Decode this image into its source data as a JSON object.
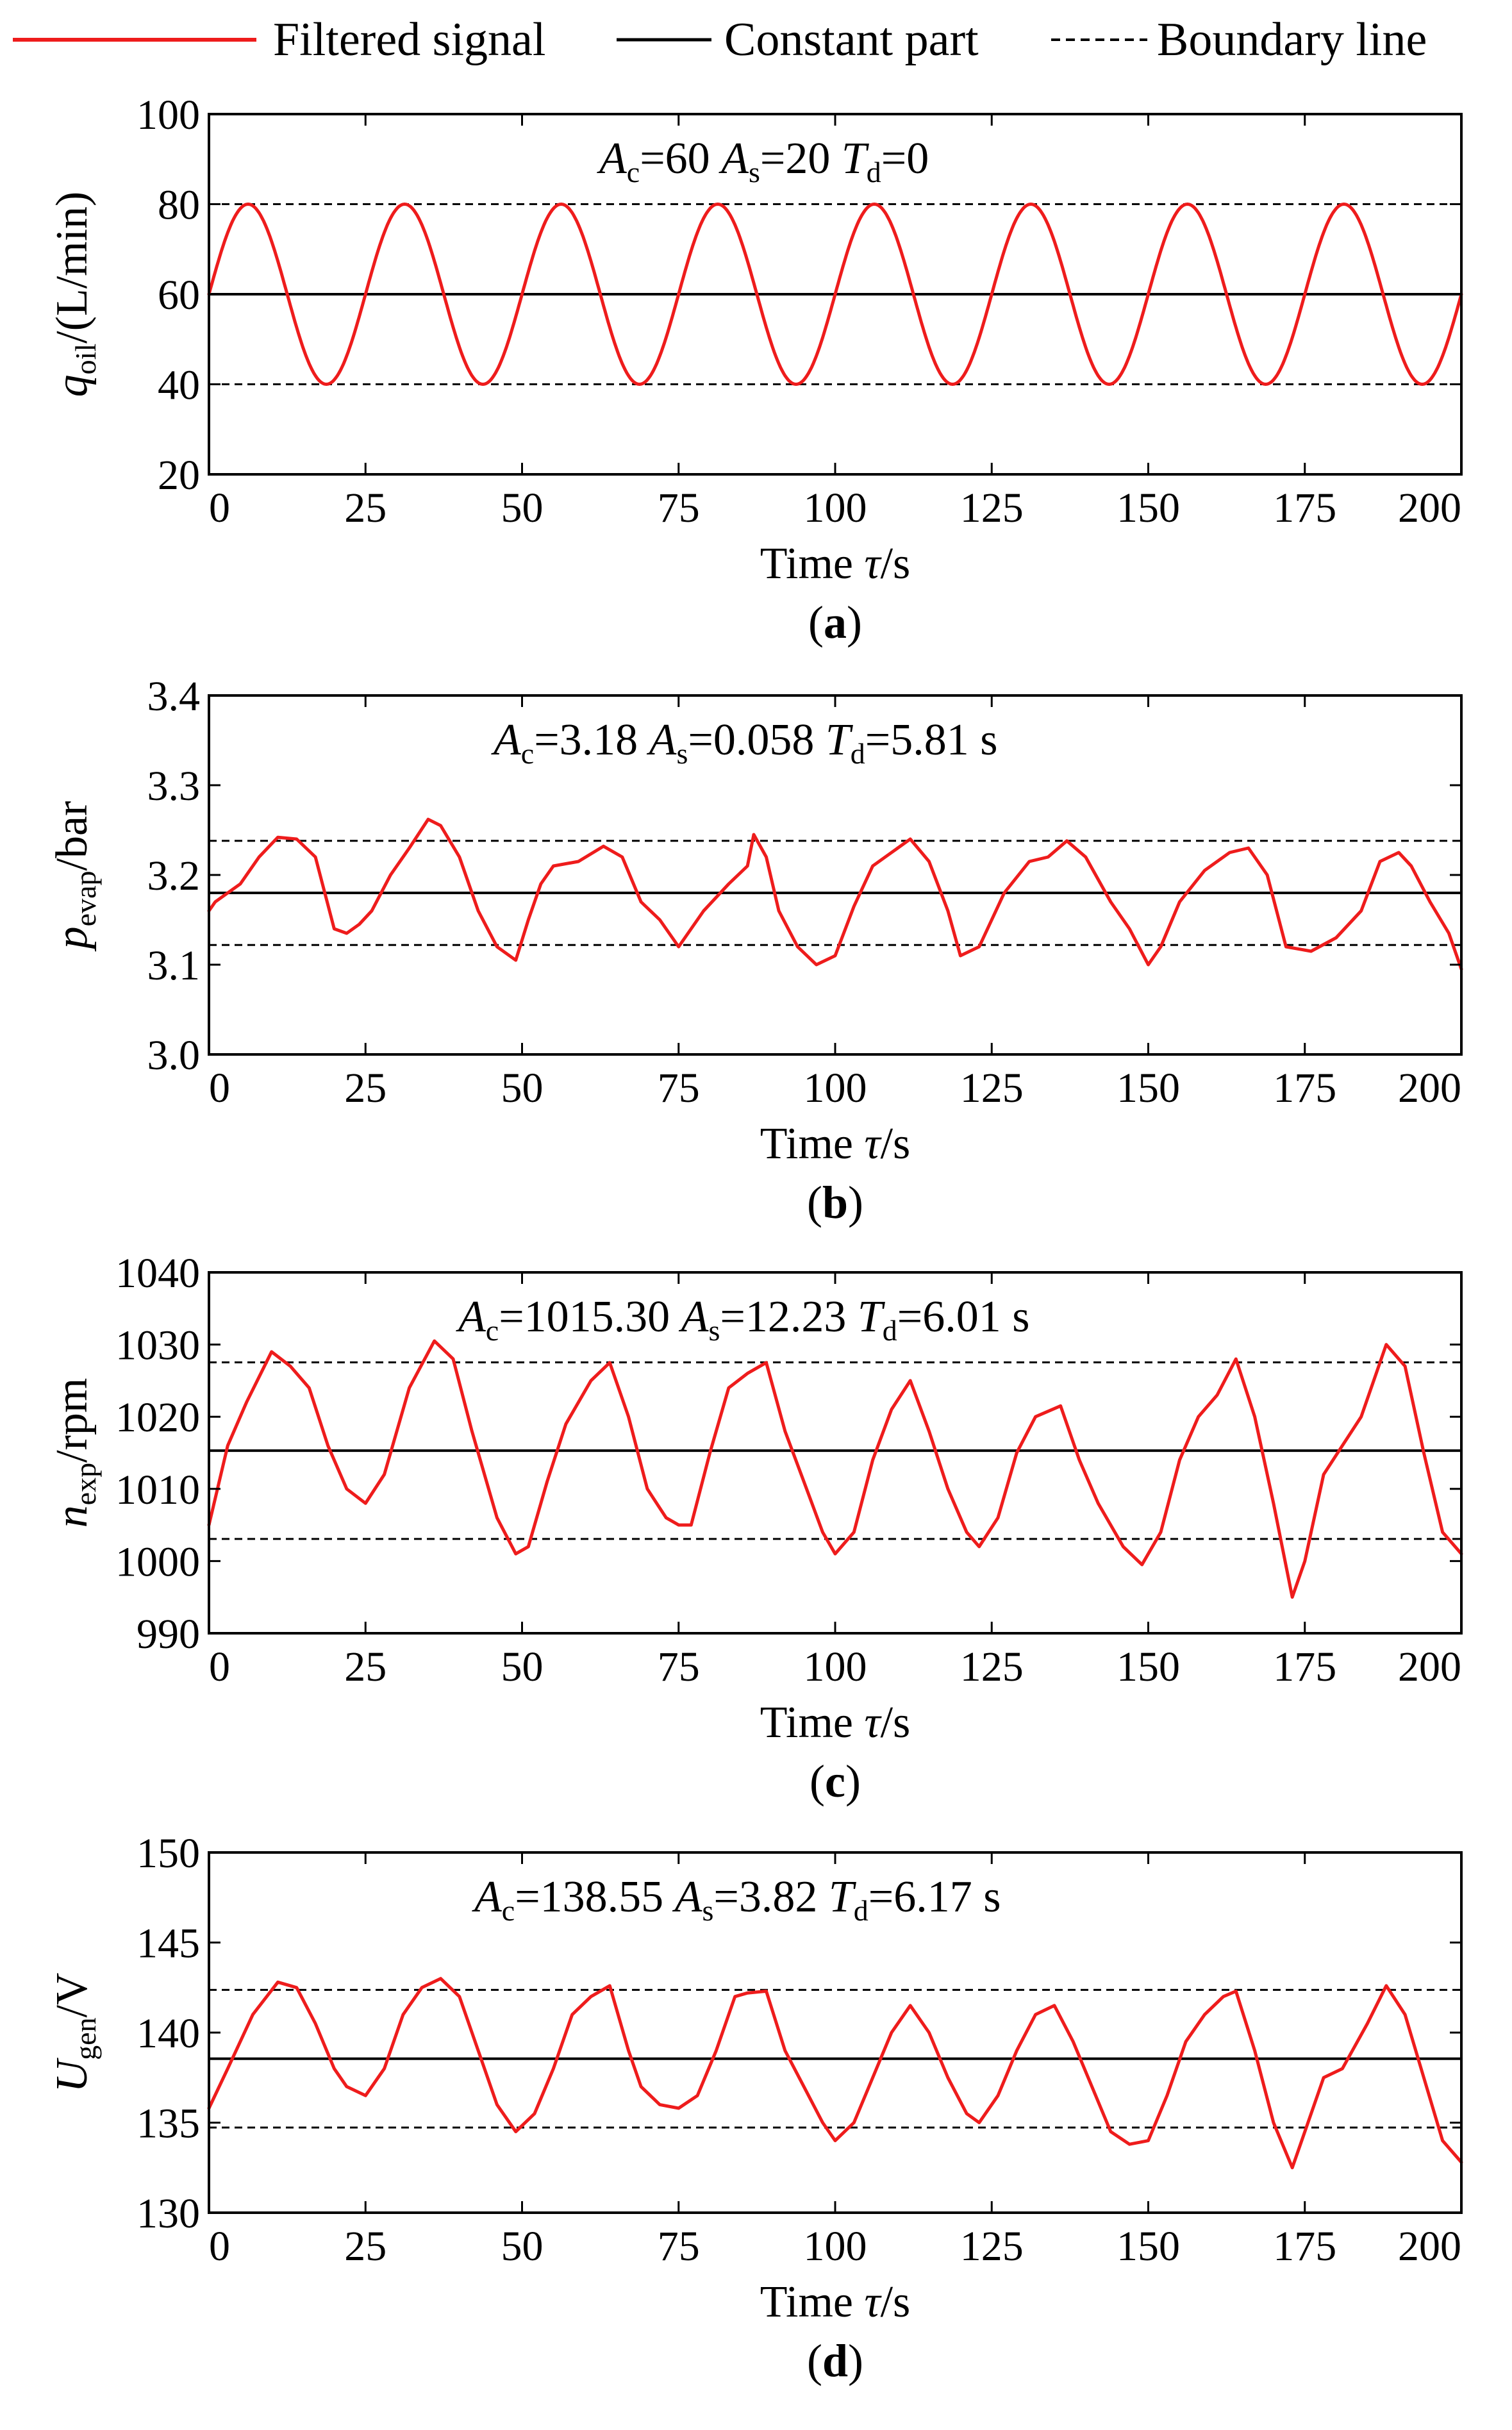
{
  "legend": {
    "filtered": "Filtered signal",
    "constant": "Constant part",
    "boundary": "Boundary line"
  },
  "colors": {
    "signal": "#ee1c1c",
    "axis": "#000000"
  },
  "chart_data": [
    {
      "type": "line",
      "panel": "a",
      "panel_label": "a",
      "xlabel": {
        "pre": "Time ",
        "var": "τ",
        "post": "/s"
      },
      "ylabel": {
        "var": "q",
        "sub": "oil",
        "unit": "/(L/min)"
      },
      "xlim": [
        0,
        200
      ],
      "xticks": [
        0,
        25,
        50,
        75,
        100,
        125,
        150,
        175,
        200
      ],
      "ylim": [
        20,
        100
      ],
      "yticks": [
        20,
        40,
        60,
        80,
        100
      ],
      "ytick_decimals": 0,
      "annotation": {
        "Ac": "60",
        "As": "20",
        "Td": "0"
      },
      "constant": 60,
      "bounds": [
        40,
        80
      ],
      "series_kind": "sine",
      "sine": {
        "center": 60,
        "amplitude": 20,
        "period": 25,
        "phase": 0
      },
      "series": [
        {
          "name": "Filtered signal",
          "x": [
            0,
            6.25,
            18.75,
            31.25,
            43.75,
            56.25,
            68.75,
            81.25,
            93.75,
            106.25,
            118.75,
            131.25,
            143.75,
            156.25,
            168.75,
            181.25,
            193.75,
            200
          ],
          "y": [
            60,
            80,
            40,
            80,
            40,
            80,
            40,
            80,
            40,
            80,
            40,
            80,
            40,
            80,
            40,
            80,
            40,
            60
          ]
        }
      ]
    },
    {
      "type": "line",
      "panel": "b",
      "panel_label": "b",
      "xlabel": {
        "pre": "Time ",
        "var": "τ",
        "post": "/s"
      },
      "ylabel": {
        "var": "p",
        "sub": "evap",
        "unit": "/bar"
      },
      "xlim": [
        0,
        200
      ],
      "xticks": [
        0,
        25,
        50,
        75,
        100,
        125,
        150,
        175,
        200
      ],
      "ylim": [
        3.0,
        3.4
      ],
      "yticks": [
        3.0,
        3.1,
        3.2,
        3.3,
        3.4
      ],
      "ytick_decimals": 1,
      "annotation": {
        "Ac": "3.18",
        "As": "0.058",
        "Td": "5.81 s"
      },
      "constant": 3.18,
      "bounds": [
        3.122,
        3.238
      ],
      "series": [
        {
          "name": "Filtered signal",
          "x": [
            0,
            1,
            2,
            5,
            8,
            11,
            14,
            17,
            20,
            22,
            24,
            26,
            29,
            32,
            35,
            37,
            40,
            43,
            46,
            49,
            51,
            53,
            55,
            59,
            63,
            66,
            69,
            72,
            75,
            79,
            83,
            86,
            87,
            89,
            91,
            94,
            97,
            100,
            103,
            106,
            109,
            112,
            115,
            118,
            120,
            123,
            127,
            131,
            134,
            137,
            140,
            144,
            147,
            150,
            152,
            155,
            159,
            163,
            166,
            169,
            172,
            176,
            180,
            184,
            187,
            190,
            192,
            195,
            198,
            200
          ],
          "y": [
            3.16,
            3.17,
            3.175,
            3.19,
            3.22,
            3.242,
            3.24,
            3.22,
            3.14,
            3.135,
            3.145,
            3.16,
            3.2,
            3.23,
            3.262,
            3.255,
            3.22,
            3.16,
            3.12,
            3.105,
            3.15,
            3.19,
            3.21,
            3.215,
            3.232,
            3.22,
            3.17,
            3.15,
            3.12,
            3.16,
            3.19,
            3.21,
            3.245,
            3.22,
            3.16,
            3.12,
            3.1,
            3.11,
            3.165,
            3.21,
            3.225,
            3.24,
            3.215,
            3.16,
            3.11,
            3.12,
            3.18,
            3.215,
            3.22,
            3.238,
            3.22,
            3.17,
            3.14,
            3.1,
            3.12,
            3.17,
            3.205,
            3.225,
            3.23,
            3.2,
            3.12,
            3.115,
            3.13,
            3.16,
            3.215,
            3.225,
            3.21,
            3.17,
            3.135,
            3.095
          ]
        }
      ]
    },
    {
      "type": "line",
      "panel": "c",
      "panel_label": "c",
      "xlabel": {
        "pre": "Time ",
        "var": "τ",
        "post": "/s"
      },
      "ylabel": {
        "var": "n",
        "sub": "exp",
        "unit": "/rpm"
      },
      "xlim": [
        0,
        200
      ],
      "xticks": [
        0,
        25,
        50,
        75,
        100,
        125,
        150,
        175,
        200
      ],
      "ylim": [
        990,
        1040
      ],
      "yticks": [
        990,
        1000,
        1010,
        1020,
        1030,
        1040
      ],
      "ytick_decimals": 0,
      "annotation": {
        "Ac": "1015.30",
        "As": "12.23",
        "Td": "6.01 s"
      },
      "constant": 1015.3,
      "bounds": [
        1003.07,
        1027.53
      ],
      "series": [
        {
          "name": "Filtered signal",
          "x": [
            0,
            3,
            6,
            10,
            13,
            16,
            19,
            22,
            25,
            28,
            32,
            36,
            39,
            42,
            46,
            49,
            51,
            54,
            57,
            61,
            64,
            67,
            70,
            73,
            75,
            77,
            80,
            83,
            86,
            89,
            92,
            95,
            98,
            100,
            103,
            106,
            109,
            112,
            115,
            118,
            121,
            123,
            126,
            129,
            132,
            136,
            139,
            142,
            146,
            149,
            152,
            155,
            158,
            161,
            164,
            167,
            170,
            173,
            175,
            178,
            181,
            184,
            188,
            191,
            194,
            197,
            200
          ],
          "y": [
            1005,
            1016,
            1022,
            1029,
            1027,
            1024,
            1016,
            1010,
            1008,
            1012,
            1024,
            1030.5,
            1028,
            1018,
            1006,
            1001,
            1002,
            1011,
            1019,
            1025,
            1027.5,
            1020,
            1010,
            1006,
            1005,
            1005,
            1015,
            1024,
            1026,
            1027.5,
            1018,
            1011,
            1004,
            1001,
            1004,
            1014,
            1021,
            1025,
            1018,
            1010,
            1004,
            1002,
            1006,
            1015,
            1020,
            1021.5,
            1014,
            1008,
            1002,
            999.5,
            1004,
            1014,
            1020,
            1023,
            1028,
            1020,
            1008,
            995,
            1000,
            1012,
            1016,
            1020,
            1030,
            1027,
            1015,
            1004,
            1001
          ]
        }
      ]
    },
    {
      "type": "line",
      "panel": "d",
      "panel_label": "d",
      "xlabel": {
        "pre": "Time ",
        "var": "τ",
        "post": "/s"
      },
      "ylabel": {
        "var": "U",
        "sub": "gen",
        "unit": "/V"
      },
      "xlim": [
        0,
        200
      ],
      "xticks": [
        0,
        25,
        50,
        75,
        100,
        125,
        150,
        175,
        200
      ],
      "ylim": [
        130,
        150
      ],
      "yticks": [
        130,
        135,
        140,
        145,
        150
      ],
      "ytick_decimals": 0,
      "annotation": {
        "Ac": "138.55",
        "As": "3.82",
        "Td": "6.17 s"
      },
      "constant": 138.55,
      "bounds": [
        134.73,
        142.37
      ],
      "series": [
        {
          "name": "Filtered signal",
          "x": [
            0,
            3,
            7,
            11,
            14,
            17,
            20,
            22,
            25,
            28,
            31,
            34,
            37,
            40,
            43,
            46,
            49,
            52,
            55,
            58,
            61,
            64,
            67,
            69,
            72,
            75,
            78,
            81,
            84,
            86,
            89,
            92,
            95,
            98,
            100,
            103,
            106,
            109,
            112,
            115,
            118,
            121,
            123,
            126,
            129,
            132,
            135,
            138,
            141,
            144,
            147,
            150,
            153,
            156,
            159,
            162,
            164,
            167,
            170,
            173,
            175,
            178,
            181,
            185,
            188,
            191,
            194,
            197,
            200
          ],
          "y": [
            135.8,
            138,
            141,
            142.8,
            142.5,
            140.5,
            138,
            137,
            136.5,
            138,
            141,
            142.5,
            143,
            142,
            139,
            136,
            134.5,
            135.5,
            138,
            141,
            142,
            142.6,
            139,
            137,
            136,
            135.8,
            136.5,
            139,
            142,
            142.2,
            142.3,
            139,
            137,
            135,
            134,
            135,
            137.5,
            140,
            141.5,
            140,
            137.5,
            135.5,
            135,
            136.5,
            139,
            141,
            141.5,
            139.5,
            137,
            134.5,
            133.8,
            134,
            136.5,
            139.5,
            141,
            142,
            142.3,
            139,
            135,
            132.5,
            134.5,
            137.5,
            138,
            140.5,
            142.6,
            141,
            137.5,
            134,
            132.8
          ]
        }
      ]
    }
  ]
}
